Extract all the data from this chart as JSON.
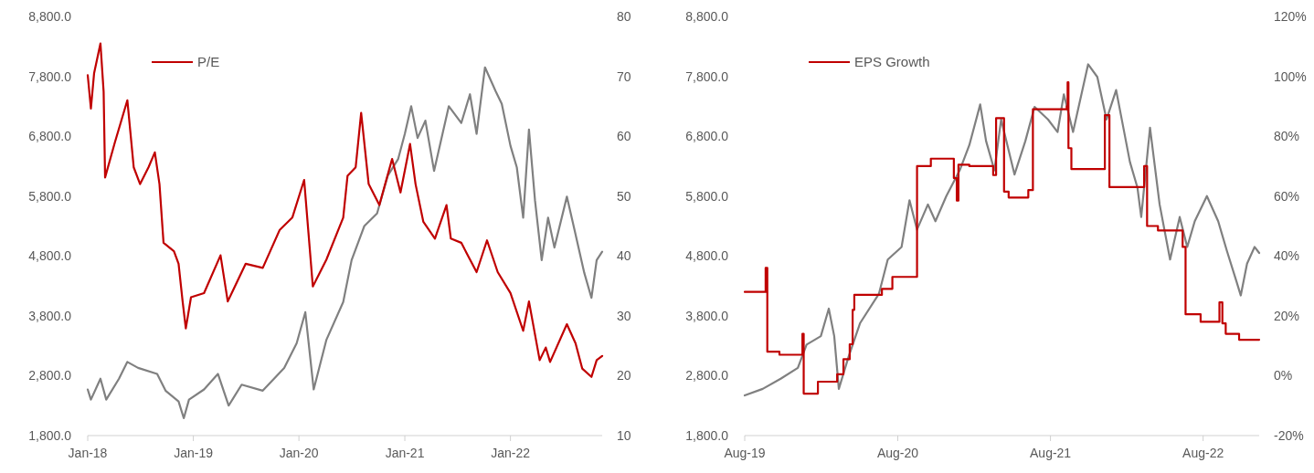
{
  "chart_data": [
    {
      "type": "line",
      "xlim": [
        "2018-01-01",
        "2022-11-14"
      ],
      "xticks": [
        {
          "value": "2018-01-01",
          "label": "Jan-18"
        },
        {
          "value": "2019-01-01",
          "label": "Jan-19"
        },
        {
          "value": "2020-01-01",
          "label": "Jan-20"
        },
        {
          "value": "2021-01-01",
          "label": "Jan-21"
        },
        {
          "value": "2022-01-01",
          "label": "Jan-22"
        }
      ],
      "ylim": [
        1800,
        8800
      ],
      "yticks": [
        {
          "value": 1800,
          "label": "1,800.0"
        },
        {
          "value": 2800,
          "label": "2,800.0"
        },
        {
          "value": 3800,
          "label": "3,800.0"
        },
        {
          "value": 4800,
          "label": "4,800.0"
        },
        {
          "value": 5800,
          "label": "5,800.0"
        },
        {
          "value": 6800,
          "label": "6,800.0"
        },
        {
          "value": 7800,
          "label": "7,800.0"
        },
        {
          "value": 8800,
          "label": "8,800.0"
        }
      ],
      "y2lim": [
        10,
        80
      ],
      "y2ticks": [
        10,
        20,
        30,
        40,
        50,
        60,
        70,
        80
      ],
      "legend": "top left",
      "grid": false,
      "series": [
        {
          "color": "#808080",
          "x": [
            "2018-01-01",
            "2018-01-12",
            "2018-02-14",
            "2018-03-06",
            "2018-04-19",
            "2018-05-18",
            "2018-06-24",
            "2018-08-29",
            "2018-09-27",
            "2018-11-11",
            "2018-11-29",
            "2018-12-17",
            "2019-02-07",
            "2019-03-27",
            "2019-05-03",
            "2019-06-17",
            "2019-08-29",
            "2019-11-11",
            "2019-12-24",
            "2020-01-23",
            "2020-02-21",
            "2020-04-05",
            "2020-06-02",
            "2020-07-01",
            "2020-08-14",
            "2020-09-27",
            "2020-11-03",
            "2020-12-09",
            "2021-01-01",
            "2021-01-23",
            "2021-02-14",
            "2021-03-13",
            "2021-04-12",
            "2021-06-02",
            "2021-07-15",
            "2021-08-14",
            "2021-09-06",
            "2021-10-05",
            "2021-11-11",
            "2021-12-02",
            "2022-01-01",
            "2022-01-23",
            "2022-02-14",
            "2022-03-06",
            "2022-03-27",
            "2022-04-19",
            "2022-05-11",
            "2022-06-02",
            "2022-07-15",
            "2022-08-14",
            "2022-09-13",
            "2022-10-08",
            "2022-10-26",
            "2022-11-14"
          ],
          "values": [
            2570,
            2400,
            2750,
            2400,
            2750,
            3030,
            2930,
            2830,
            2550,
            2370,
            2090,
            2400,
            2570,
            2830,
            2300,
            2650,
            2550,
            2930,
            3340,
            3860,
            2570,
            3400,
            4030,
            4730,
            5300,
            5510,
            6140,
            6420,
            6840,
            7300,
            6770,
            7060,
            6220,
            7300,
            7020,
            7500,
            6840,
            7950,
            7550,
            7340,
            6640,
            6280,
            5440,
            6910,
            5720,
            4730,
            5440,
            4940,
            5790,
            5160,
            4520,
            4100,
            4730,
            4870
          ]
        },
        {
          "name": "P/E",
          "color": "#c00000",
          "axis": "y2",
          "x": [
            "2018-01-01",
            "2018-01-12",
            "2018-01-23",
            "2018-02-14",
            "2018-02-25",
            "2018-03-02",
            "2018-04-05",
            "2018-05-18",
            "2018-06-09",
            "2018-07-01",
            "2018-07-30",
            "2018-08-21",
            "2018-09-06",
            "2018-09-20",
            "2018-10-26",
            "2018-11-11",
            "2018-11-25",
            "2018-12-06",
            "2018-12-24",
            "2019-02-07",
            "2019-04-05",
            "2019-04-30",
            "2019-07-01",
            "2019-08-29",
            "2019-10-26",
            "2019-12-09",
            "2020-01-19",
            "2020-02-18",
            "2020-04-05",
            "2020-06-02",
            "2020-06-17",
            "2020-07-15",
            "2020-08-03",
            "2020-08-29",
            "2020-10-05",
            "2020-11-18",
            "2020-12-17",
            "2021-01-19",
            "2021-02-07",
            "2021-03-06",
            "2021-04-15",
            "2021-05-25",
            "2021-06-09",
            "2021-07-15",
            "2021-09-06",
            "2021-10-12",
            "2021-11-18",
            "2022-01-01",
            "2022-02-14",
            "2022-03-06",
            "2022-04-12",
            "2022-05-03",
            "2022-05-18",
            "2022-07-15",
            "2022-08-14",
            "2022-09-06",
            "2022-10-08",
            "2022-10-26",
            "2022-11-14"
          ],
          "values": [
            70.2,
            64.6,
            70.5,
            75.5,
            67.4,
            53.1,
            59,
            66,
            54.8,
            52,
            54.8,
            57.3,
            52,
            42.2,
            40.8,
            38.7,
            32.4,
            27.9,
            33.1,
            33.8,
            40.1,
            32.4,
            38.7,
            38,
            44.3,
            46.4,
            52.7,
            34.9,
            39.4,
            46.4,
            53.4,
            54.8,
            63.9,
            52,
            48.5,
            56.2,
            50.6,
            58.7,
            52,
            45.7,
            42.9,
            48.5,
            42.9,
            42.2,
            37.3,
            42.6,
            37.3,
            33.8,
            27.5,
            32.4,
            22.6,
            24.7,
            22.3,
            28.6,
            25.4,
            21.2,
            19.8,
            22.6,
            23.3
          ]
        }
      ]
    },
    {
      "type": "line",
      "xlim": [
        "2019-08-01",
        "2022-12-13"
      ],
      "xticks": [
        {
          "value": "2019-08-01",
          "label": "Aug-19"
        },
        {
          "value": "2020-08-01",
          "label": "Aug-20"
        },
        {
          "value": "2021-08-01",
          "label": "Aug-21"
        },
        {
          "value": "2022-08-01",
          "label": "Aug-22"
        }
      ],
      "ylim": [
        1800,
        8800
      ],
      "yticks": [
        {
          "value": 1800,
          "label": "1,800.0"
        },
        {
          "value": 2800,
          "label": "2,800.0"
        },
        {
          "value": 3800,
          "label": "3,800.0"
        },
        {
          "value": 4800,
          "label": "4,800.0"
        },
        {
          "value": 5800,
          "label": "5,800.0"
        },
        {
          "value": 6800,
          "label": "6,800.0"
        },
        {
          "value": 7800,
          "label": "7,800.0"
        },
        {
          "value": 8800,
          "label": "8,800.0"
        }
      ],
      "y2lim": [
        -20,
        120
      ],
      "y2ticks": [
        {
          "value": -20,
          "label": "-20%"
        },
        {
          "value": 0,
          "label": "0%"
        },
        {
          "value": 20,
          "label": "20%"
        },
        {
          "value": 40,
          "label": "40%"
        },
        {
          "value": 60,
          "label": "60%"
        },
        {
          "value": 80,
          "label": "80%"
        },
        {
          "value": 100,
          "label": "100%"
        },
        {
          "value": 120,
          "label": "120%"
        }
      ],
      "legend": "top left",
      "grid": false,
      "series": [
        {
          "color": "#808080",
          "x": [
            "2019-08-01",
            "2019-09-13",
            "2019-10-26",
            "2019-12-06",
            "2019-12-27",
            "2020-01-30",
            "2020-02-18",
            "2020-03-02",
            "2020-03-13",
            "2020-04-05",
            "2020-05-03",
            "2020-06-17",
            "2020-07-08",
            "2020-08-10",
            "2020-08-29",
            "2020-09-16",
            "2020-10-12",
            "2020-10-30",
            "2020-11-25",
            "2020-12-27",
            "2021-01-19",
            "2021-02-14",
            "2021-02-28",
            "2021-03-20",
            "2021-04-05",
            "2021-05-07",
            "2021-06-02",
            "2021-06-24",
            "2021-07-26",
            "2021-08-18",
            "2021-09-02",
            "2021-09-24",
            "2021-10-30",
            "2021-11-21",
            "2021-12-13",
            "2022-01-05",
            "2022-02-07",
            "2022-02-25",
            "2022-03-06",
            "2022-03-27",
            "2022-04-19",
            "2022-05-14",
            "2022-06-06",
            "2022-06-24",
            "2022-07-12",
            "2022-08-10",
            "2022-09-06",
            "2022-09-27",
            "2022-10-19",
            "2022-10-30",
            "2022-11-14",
            "2022-12-02",
            "2022-12-13"
          ],
          "values": [
            2470,
            2580,
            2750,
            2930,
            3320,
            3460,
            3920,
            3460,
            2580,
            3110,
            3680,
            4170,
            4740,
            4950,
            5730,
            5240,
            5660,
            5380,
            5800,
            6230,
            6650,
            7330,
            6720,
            6230,
            7080,
            6160,
            6720,
            7290,
            7080,
            6870,
            7500,
            6870,
            8000,
            7790,
            7080,
            7570,
            6370,
            5940,
            5450,
            6940,
            5660,
            4740,
            5450,
            4950,
            5380,
            5800,
            5380,
            4880,
            4390,
            4140,
            4670,
            4950,
            4850
          ]
        },
        {
          "name": "EPS Growth",
          "type": "step",
          "color": "#c00000",
          "axis": "y2",
          "x": [
            "2019-08-01",
            "2019-09-20",
            "2019-09-24",
            "2019-10-23",
            "2019-12-17",
            "2019-12-20",
            "2020-01-23",
            "2020-03-09",
            "2020-03-24",
            "2020-04-08",
            "2020-04-15",
            "2020-04-19",
            "2020-06-24",
            "2020-07-19",
            "2020-09-16",
            "2020-10-19",
            "2020-12-13",
            "2020-12-20",
            "2020-12-24",
            "2021-01-19",
            "2021-03-17",
            "2021-03-24",
            "2021-04-12",
            "2021-04-23",
            "2021-06-09",
            "2021-06-20",
            "2021-09-09",
            "2021-09-11",
            "2021-09-13",
            "2021-09-20",
            "2021-12-09",
            "2021-12-20",
            "2022-03-02",
            "2022-03-13",
            "2022-03-20",
            "2022-04-15",
            "2022-06-13",
            "2022-06-20",
            "2022-07-26",
            "2022-09-09",
            "2022-09-16",
            "2022-09-24",
            "2022-10-26",
            "2022-12-13"
          ],
          "values": [
            28,
            36,
            8,
            7,
            14,
            -6,
            -2,
            0.5,
            5.5,
            10.5,
            22,
            27,
            29,
            33,
            70,
            72.5,
            66,
            58.5,
            70.5,
            70,
            67,
            86,
            61.5,
            59.5,
            62,
            89,
            90,
            98,
            76,
            69,
            87,
            63,
            63,
            70,
            50,
            48.5,
            43,
            20.5,
            18,
            24.5,
            17.5,
            14,
            12,
            12
          ]
        }
      ]
    }
  ]
}
